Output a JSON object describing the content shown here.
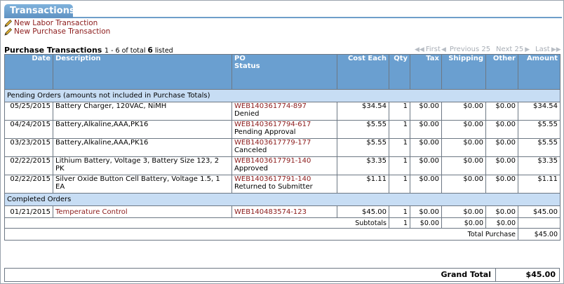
{
  "tab": {
    "title": "Transactions"
  },
  "actions": [
    {
      "label": "New Labor Transaction",
      "icon": "pencil-icon"
    },
    {
      "label": "New Purchase Transaction",
      "icon": "pencil-icon"
    }
  ],
  "list": {
    "title": "Purchase Transactions",
    "range": "1 - 6 of total",
    "total": "6",
    "suffix": "listed"
  },
  "pager": {
    "first": "First",
    "previous": "Previous 25",
    "next": "Next 25",
    "last": "Last"
  },
  "columns": {
    "date": "Date",
    "description": "Description",
    "po": "PO",
    "status": "Status",
    "cost": "Cost Each",
    "qty": "Qty",
    "tax": "Tax",
    "shipping": "Shipping",
    "other": "Other",
    "amount": "Amount"
  },
  "sections": {
    "pending": "Pending Orders (amounts not included in Purchase Totals)",
    "completed": "Completed Orders"
  },
  "pending_rows": [
    {
      "date": "05/25/2015",
      "description": "Battery Charger, 120VAC, NiMH",
      "po": "WEB140361774-897",
      "status": "Denied",
      "cost": "$34.54",
      "qty": "1",
      "tax": "$0.00",
      "shipping": "$0.00",
      "other": "$0.00",
      "amount": "$34.54"
    },
    {
      "date": "04/24/2015",
      "description": "Battery,Alkaline,AAA,PK16",
      "po": "WEB1403617794-617",
      "status": "Pending Approval",
      "cost": "$5.55",
      "qty": "1",
      "tax": "$0.00",
      "shipping": "$0.00",
      "other": "$0.00",
      "amount": "$5.55"
    },
    {
      "date": "03/23/2015",
      "description": "Battery,Alkaline,AAA,PK16",
      "po": "WEB1403617779-177",
      "status": "Canceled",
      "cost": "$5.55",
      "qty": "1",
      "tax": "$0.00",
      "shipping": "$0.00",
      "other": "$0.00",
      "amount": "$5.55"
    },
    {
      "date": "02/22/2015",
      "description": "Lithium Battery, Voltage 3, Battery Size 123, 2 PK",
      "po": "WEB1403617791-140",
      "status": "Approved",
      "cost": "$3.35",
      "qty": "1",
      "tax": "$0.00",
      "shipping": "$0.00",
      "other": "$0.00",
      "amount": "$3.35"
    },
    {
      "date": "02/22/2015",
      "description": "Silver Oxide Button Cell Battery, Voltage 1.5, 1 EA",
      "po": "WEB1403617791-140",
      "status": "Returned to Submitter",
      "cost": "$1.11",
      "qty": "1",
      "tax": "$0.00",
      "shipping": "$0.00",
      "other": "$0.00",
      "amount": "$1.11"
    }
  ],
  "completed_row": {
    "date": "01/21/2015",
    "description": "Temperature Control",
    "po": "WEB140483574-123",
    "cost": "$45.00",
    "qty": "1",
    "tax": "$0.00",
    "shipping": "$0.00",
    "other": "$0.00",
    "amount": "$45.00"
  },
  "subtotals": {
    "label": "Subtotals",
    "qty": "1",
    "tax": "$0.00",
    "shipping": "$0.00",
    "other": "$0.00"
  },
  "total_purchase": {
    "label": "Total Purchase",
    "value": "$45.00"
  },
  "grand_total": {
    "label": "Grand Total",
    "value": "$45.00"
  }
}
